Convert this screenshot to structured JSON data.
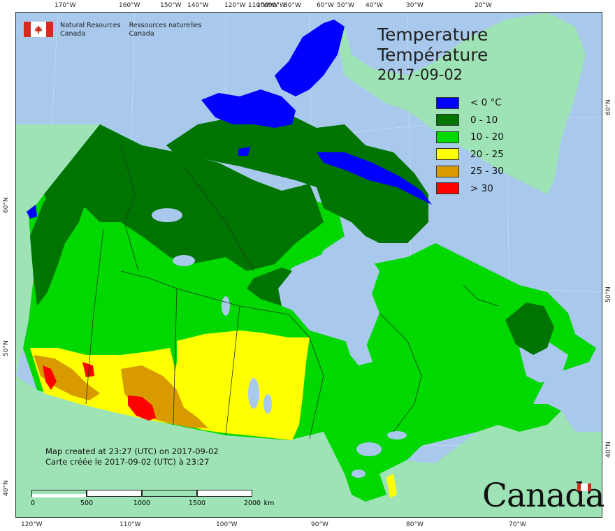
{
  "header": {
    "agency_en_line1": "Natural Resources",
    "agency_en_line2": "Canada",
    "agency_fr_line1": "Ressources naturelles",
    "agency_fr_line2": "Canada"
  },
  "title": {
    "en": "Temperature",
    "fr": "Température",
    "date": "2017-09-02"
  },
  "legend": [
    {
      "label": "< 0 °C",
      "color": "#0000ff"
    },
    {
      "label": "0 - 10",
      "color": "#007400"
    },
    {
      "label": "10 - 20",
      "color": "#00d800"
    },
    {
      "label": "20 - 25",
      "color": "#ffff00"
    },
    {
      "label": "25 - 30",
      "color": "#d99a00"
    },
    {
      "label": "> 30",
      "color": "#ff0000"
    }
  ],
  "credits": {
    "line_en": "Map created at 23:27 (UTC) on 2017-09-02",
    "line_fr": "Carte créée le 2017-09-02 (UTC) à 23:27"
  },
  "scalebar": {
    "ticks": [
      "0",
      "500",
      "1000",
      "1500",
      "2000"
    ],
    "unit": "km"
  },
  "graticule": {
    "top": [
      "170°W",
      "160°W",
      "150°W",
      "140°W",
      "120°W",
      "110°W",
      "100°W",
      "90°W",
      "80°W",
      "60°W",
      "50°W",
      "40°W",
      "30°W",
      "20°W"
    ],
    "bottom": [
      "120°W",
      "110°W",
      "100°W",
      "90°W",
      "80°W",
      "70°W"
    ],
    "left": [
      "60°N",
      "50°N",
      "40°N"
    ],
    "right": [
      "60°N",
      "50°N",
      "40°N"
    ]
  },
  "wordmark": "Canada",
  "colors": {
    "ocean": "#a8c9ec",
    "land_other": "#9ee3b5",
    "water_inland": "#a8c9ec"
  }
}
